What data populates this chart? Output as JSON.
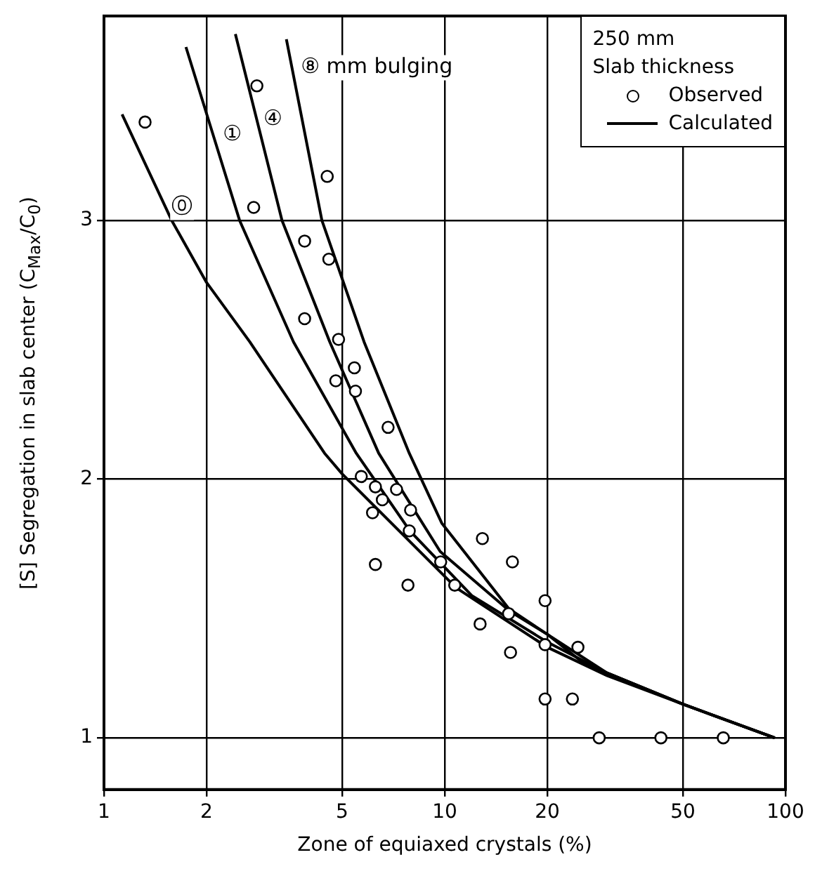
{
  "chart_data": {
    "type": "scatter",
    "xlabel": "Zone of equiaxed crystals (%)",
    "ylabel": "[S] Segregation in slab center (C$_{Max}$/C$_{0}$)",
    "log": "x",
    "xlim": [
      1,
      100
    ],
    "xticks": [
      1,
      2,
      5,
      10,
      20,
      50,
      100
    ],
    "ylim": [
      0.8,
      3.79
    ],
    "yticks": [
      1,
      2,
      3
    ],
    "grid": true,
    "legend": "top right",
    "legend_title": "250 mm\nSlab thickness",
    "series": [
      {
        "name": "Observed",
        "marker": "circle",
        "color": "#000000",
        "x": [
          1.32,
          2.81,
          4.52,
          2.75,
          3.88,
          4.57,
          3.88,
          4.88,
          5.43,
          4.79,
          5.47,
          6.82,
          5.69,
          6.26,
          7.22,
          6.56,
          7.94,
          6.14,
          7.87,
          12.9,
          15.8,
          6.26,
          9.73,
          7.8,
          10.7,
          19.7,
          15.4,
          12.7,
          19.7,
          24.6,
          15.6,
          19.7,
          23.7,
          28.4,
          43.1,
          65.7
        ],
        "values": [
          3.38,
          3.52,
          3.17,
          3.05,
          2.92,
          2.85,
          2.62,
          2.54,
          2.43,
          2.38,
          2.34,
          2.2,
          2.01,
          1.97,
          1.96,
          1.92,
          1.88,
          1.87,
          1.8,
          1.77,
          1.68,
          1.67,
          1.68,
          1.59,
          1.59,
          1.53,
          1.48,
          1.44,
          1.36,
          1.35,
          1.33,
          1.15,
          1.15,
          1.0,
          1.0,
          1.0
        ]
      },
      {
        "name": "Calculated",
        "type": "line",
        "marker": "none",
        "line_style": "solid",
        "color": "#000000",
        "x": [
          1.13,
          1.58,
          2,
          2.68,
          4.44,
          5,
          10.8,
          20,
          30,
          50,
          93
        ],
        "values": [
          3.41,
          3.0,
          2.76,
          2.53,
          2.1,
          2.02,
          1.58,
          1.35,
          1.24,
          1.13,
          1.0
        ]
      },
      {
        "type": "line",
        "marker": "none",
        "line_style": "solid",
        "color": "#000000",
        "x": [
          1.74,
          2.5,
          3.6,
          5.5,
          7.9,
          12,
          20,
          30,
          50,
          93
        ],
        "values": [
          3.67,
          3.0,
          2.53,
          2.1,
          1.8,
          1.55,
          1.37,
          1.25,
          1.13,
          1.0
        ]
      },
      {
        "type": "line",
        "marker": "none",
        "line_style": "solid",
        "color": "#000000",
        "x": [
          2.43,
          3.33,
          4.6,
          6.4,
          9.7,
          15.5,
          20,
          30,
          50,
          93
        ],
        "values": [
          3.72,
          3.0,
          2.53,
          2.1,
          1.72,
          1.49,
          1.4,
          1.25,
          1.13,
          1.0
        ]
      },
      {
        "type": "line",
        "marker": "none",
        "line_style": "solid",
        "color": "#000000",
        "x": [
          3.43,
          4.36,
          5.8,
          7.87,
          9.8,
          15.4,
          20,
          25.5,
          30,
          50,
          93
        ],
        "values": [
          3.7,
          3.0,
          2.53,
          2.1,
          1.83,
          1.5,
          1.4,
          1.29,
          1.25,
          1.13,
          1.0
        ]
      }
    ],
    "annotations": [
      {
        "text": "⓪",
        "x": 1.52,
        "y": 3.05
      },
      {
        "text": "①",
        "x": 2.15,
        "y": 3.33
      },
      {
        "text": "④",
        "x": 2.83,
        "y": 3.39
      },
      {
        "text": "⑧ mm bulging",
        "x": 3.64,
        "y": 3.59
      }
    ]
  }
}
